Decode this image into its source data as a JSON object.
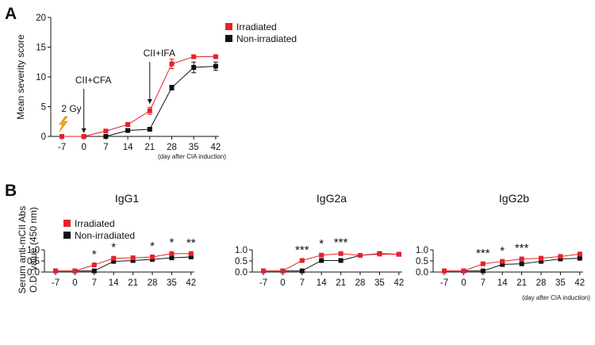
{
  "colors": {
    "irradiated": "#e8202a",
    "non_irradiated": "#111111",
    "lightning": "#f5a623"
  },
  "panel_labels": {
    "a": "A",
    "b": "B"
  },
  "day_note": "(day after CIA induction)",
  "chart_data": [
    {
      "id": "severity",
      "type": "line",
      "title": "",
      "xlabel": "(day after CIA induction)",
      "ylabel": "Mean severity score",
      "categories": [
        "-7",
        "0",
        "7",
        "14",
        "21",
        "28",
        "35",
        "42"
      ],
      "ylim": [
        0,
        20
      ],
      "yticks": [
        "0",
        "5",
        "10",
        "15",
        "20"
      ],
      "legend_position": "top-right",
      "annotations": [
        {
          "label": "2 Gy",
          "x": "-7",
          "kind": "lightning"
        },
        {
          "label": "CII+CFA",
          "x": "0",
          "kind": "arrow",
          "arrow_to": 0.3
        },
        {
          "label": "CII+IFA",
          "x": "21",
          "kind": "arrow",
          "arrow_to": 5.2
        }
      ],
      "series": [
        {
          "name": "Irradiated",
          "color": "#e8202a",
          "values": [
            0,
            0,
            0.9,
            2.0,
            4.3,
            12.2,
            13.4,
            13.4
          ],
          "errors": [
            0,
            0,
            0.15,
            0.25,
            0.6,
            0.8,
            0.3,
            0.3
          ]
        },
        {
          "name": "Non-irradiated",
          "color": "#111111",
          "values": [
            0,
            0,
            0,
            1.0,
            1.2,
            8.2,
            11.6,
            11.8
          ],
          "errors": [
            0,
            0,
            0,
            0.15,
            0.2,
            0.4,
            0.9,
            0.7
          ]
        }
      ]
    },
    {
      "id": "igg1",
      "type": "line",
      "title": "IgG1",
      "xlabel": "",
      "ylabel": [
        "Serum anti-mCII Abs",
        "O.D. value (450 nm)"
      ],
      "categories": [
        "-7",
        "0",
        "7",
        "14",
        "21",
        "28",
        "35",
        "42"
      ],
      "ylim": [
        0,
        1.0
      ],
      "yticks": [
        "0.0",
        "0.5",
        "1.0"
      ],
      "legend_position": "top-left",
      "significance": [
        "",
        "",
        "*",
        "*",
        "",
        "*",
        "*",
        "**"
      ],
      "series": [
        {
          "name": "Irradiated",
          "color": "#e8202a",
          "values": [
            0.05,
            0.05,
            0.32,
            0.62,
            0.64,
            0.68,
            0.83,
            0.83
          ],
          "errors": [
            0,
            0,
            0.02,
            0.04,
            0.04,
            0.03,
            0.04,
            0.03
          ]
        },
        {
          "name": "Non-irradiated",
          "color": "#111111",
          "values": [
            0.05,
            0.05,
            0.05,
            0.48,
            0.52,
            0.57,
            0.64,
            0.68
          ],
          "errors": [
            0,
            0,
            0,
            0.03,
            0.07,
            0.04,
            0.03,
            0.02
          ]
        }
      ]
    },
    {
      "id": "igg2a",
      "type": "line",
      "title": "IgG2a",
      "xlabel": "",
      "ylabel": "",
      "categories": [
        "-7",
        "0",
        "7",
        "14",
        "21",
        "28",
        "35",
        "42"
      ],
      "ylim": [
        0,
        1.0
      ],
      "yticks": [
        "0.0",
        "0.5",
        "1.0"
      ],
      "significance": [
        "",
        "",
        "***",
        "*",
        "***",
        "",
        "",
        ""
      ],
      "series": [
        {
          "name": "Irradiated",
          "color": "#e8202a",
          "values": [
            0.05,
            0.05,
            0.52,
            0.76,
            0.83,
            0.75,
            0.81,
            0.8
          ],
          "errors": [
            0,
            0,
            0.02,
            0.07,
            0.04,
            0.06,
            0.02,
            0.03
          ]
        },
        {
          "name": "Non-irradiated",
          "color": "#111111",
          "values": [
            0.05,
            0.05,
            0.05,
            0.52,
            0.52,
            0.75,
            0.83,
            0.8
          ],
          "errors": [
            0,
            0,
            0,
            0.02,
            0.03,
            0.07,
            0.02,
            0.02
          ]
        }
      ]
    },
    {
      "id": "igg2b",
      "type": "line",
      "title": "IgG2b",
      "xlabel": "(day after CIA induction)",
      "ylabel": "",
      "categories": [
        "-7",
        "0",
        "7",
        "14",
        "21",
        "28",
        "35",
        "42"
      ],
      "ylim": [
        0,
        1.0
      ],
      "yticks": [
        "0.0",
        "0.5",
        "1.0"
      ],
      "significance": [
        "",
        "",
        "***",
        "*",
        "***",
        "",
        "",
        ""
      ],
      "series": [
        {
          "name": "Irradiated",
          "color": "#e8202a",
          "values": [
            0.05,
            0.05,
            0.37,
            0.48,
            0.59,
            0.62,
            0.7,
            0.81
          ],
          "errors": [
            0,
            0,
            0.02,
            0.02,
            0.03,
            0.02,
            0.05,
            0.03
          ]
        },
        {
          "name": "Non-irradiated",
          "color": "#111111",
          "values": [
            0.05,
            0.05,
            0.05,
            0.34,
            0.37,
            0.48,
            0.59,
            0.62
          ],
          "errors": [
            0,
            0,
            0,
            0.04,
            0.02,
            0.02,
            0.03,
            0.02
          ]
        }
      ]
    }
  ]
}
